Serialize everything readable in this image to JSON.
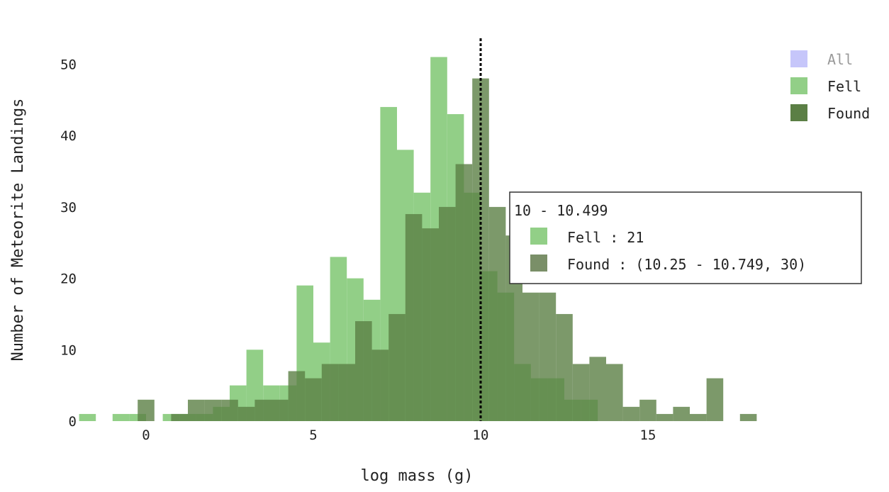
{
  "chart_data": {
    "type": "bar",
    "title": "",
    "xlabel": "log mass (g)",
    "ylabel": "Number of Meteorite Landings",
    "xlim": [
      -2,
      18.5
    ],
    "ylim": [
      0,
      53
    ],
    "xticks": [
      0,
      5,
      10,
      15
    ],
    "yticks": [
      0,
      10,
      20,
      30,
      40,
      50
    ],
    "grid": false,
    "legend_placement": "top-right",
    "reference_line": {
      "x": 10,
      "style": "dotted"
    },
    "series": [
      {
        "name": "All",
        "color": "#c6c6fa",
        "hidden": true,
        "bin_width": 0.5,
        "bins": []
      },
      {
        "name": "Fell",
        "color": "#92cf87",
        "bin_width": 0.5,
        "bins": [
          [
            -2.0,
            1
          ],
          [
            -1.0,
            1
          ],
          [
            -0.5,
            1
          ],
          [
            0.5,
            1
          ],
          [
            1.0,
            1
          ],
          [
            1.5,
            1
          ],
          [
            2.0,
            2
          ],
          [
            2.5,
            5
          ],
          [
            3.0,
            10
          ],
          [
            3.5,
            5
          ],
          [
            4.0,
            5
          ],
          [
            4.5,
            19
          ],
          [
            5.0,
            11
          ],
          [
            5.5,
            23
          ],
          [
            6.0,
            20
          ],
          [
            6.5,
            17
          ],
          [
            7.0,
            44
          ],
          [
            7.5,
            38
          ],
          [
            8.0,
            32
          ],
          [
            8.5,
            51
          ],
          [
            9.0,
            43
          ],
          [
            9.5,
            32
          ],
          [
            10.0,
            21
          ],
          [
            10.5,
            18
          ],
          [
            11.0,
            8
          ],
          [
            11.5,
            6
          ],
          [
            12.0,
            6
          ],
          [
            12.5,
            3
          ],
          [
            13.0,
            3
          ]
        ]
      },
      {
        "name": "Found",
        "color": "#5b7f45",
        "opacity": 0.8,
        "bin_width": 0.5,
        "bins": [
          [
            -0.25,
            3
          ],
          [
            0.75,
            1
          ],
          [
            1.25,
            3
          ],
          [
            1.75,
            3
          ],
          [
            2.25,
            3
          ],
          [
            2.75,
            2
          ],
          [
            3.25,
            3
          ],
          [
            3.75,
            3
          ],
          [
            4.25,
            7
          ],
          [
            4.75,
            6
          ],
          [
            5.25,
            8
          ],
          [
            5.75,
            8
          ],
          [
            6.25,
            14
          ],
          [
            6.75,
            10
          ],
          [
            7.25,
            15
          ],
          [
            7.75,
            29
          ],
          [
            8.25,
            27
          ],
          [
            8.75,
            30
          ],
          [
            9.25,
            36
          ],
          [
            9.75,
            48
          ],
          [
            10.25,
            30
          ],
          [
            10.75,
            26
          ],
          [
            11.25,
            18
          ],
          [
            11.75,
            18
          ],
          [
            12.25,
            15
          ],
          [
            12.75,
            8
          ],
          [
            13.25,
            9
          ],
          [
            13.75,
            8
          ],
          [
            14.25,
            2
          ],
          [
            14.75,
            3
          ],
          [
            15.25,
            1
          ],
          [
            15.75,
            2
          ],
          [
            16.25,
            1
          ],
          [
            16.75,
            6
          ],
          [
            17.75,
            1
          ]
        ]
      }
    ],
    "tooltip": {
      "header": "10 - 10.499",
      "items": [
        {
          "series": "Fell",
          "color": "#92cf87",
          "text": "Fell : 21"
        },
        {
          "series": "Found",
          "color": "#7a8f68",
          "text": "Found : (10.25 - 10.749, 30)"
        }
      ]
    }
  }
}
